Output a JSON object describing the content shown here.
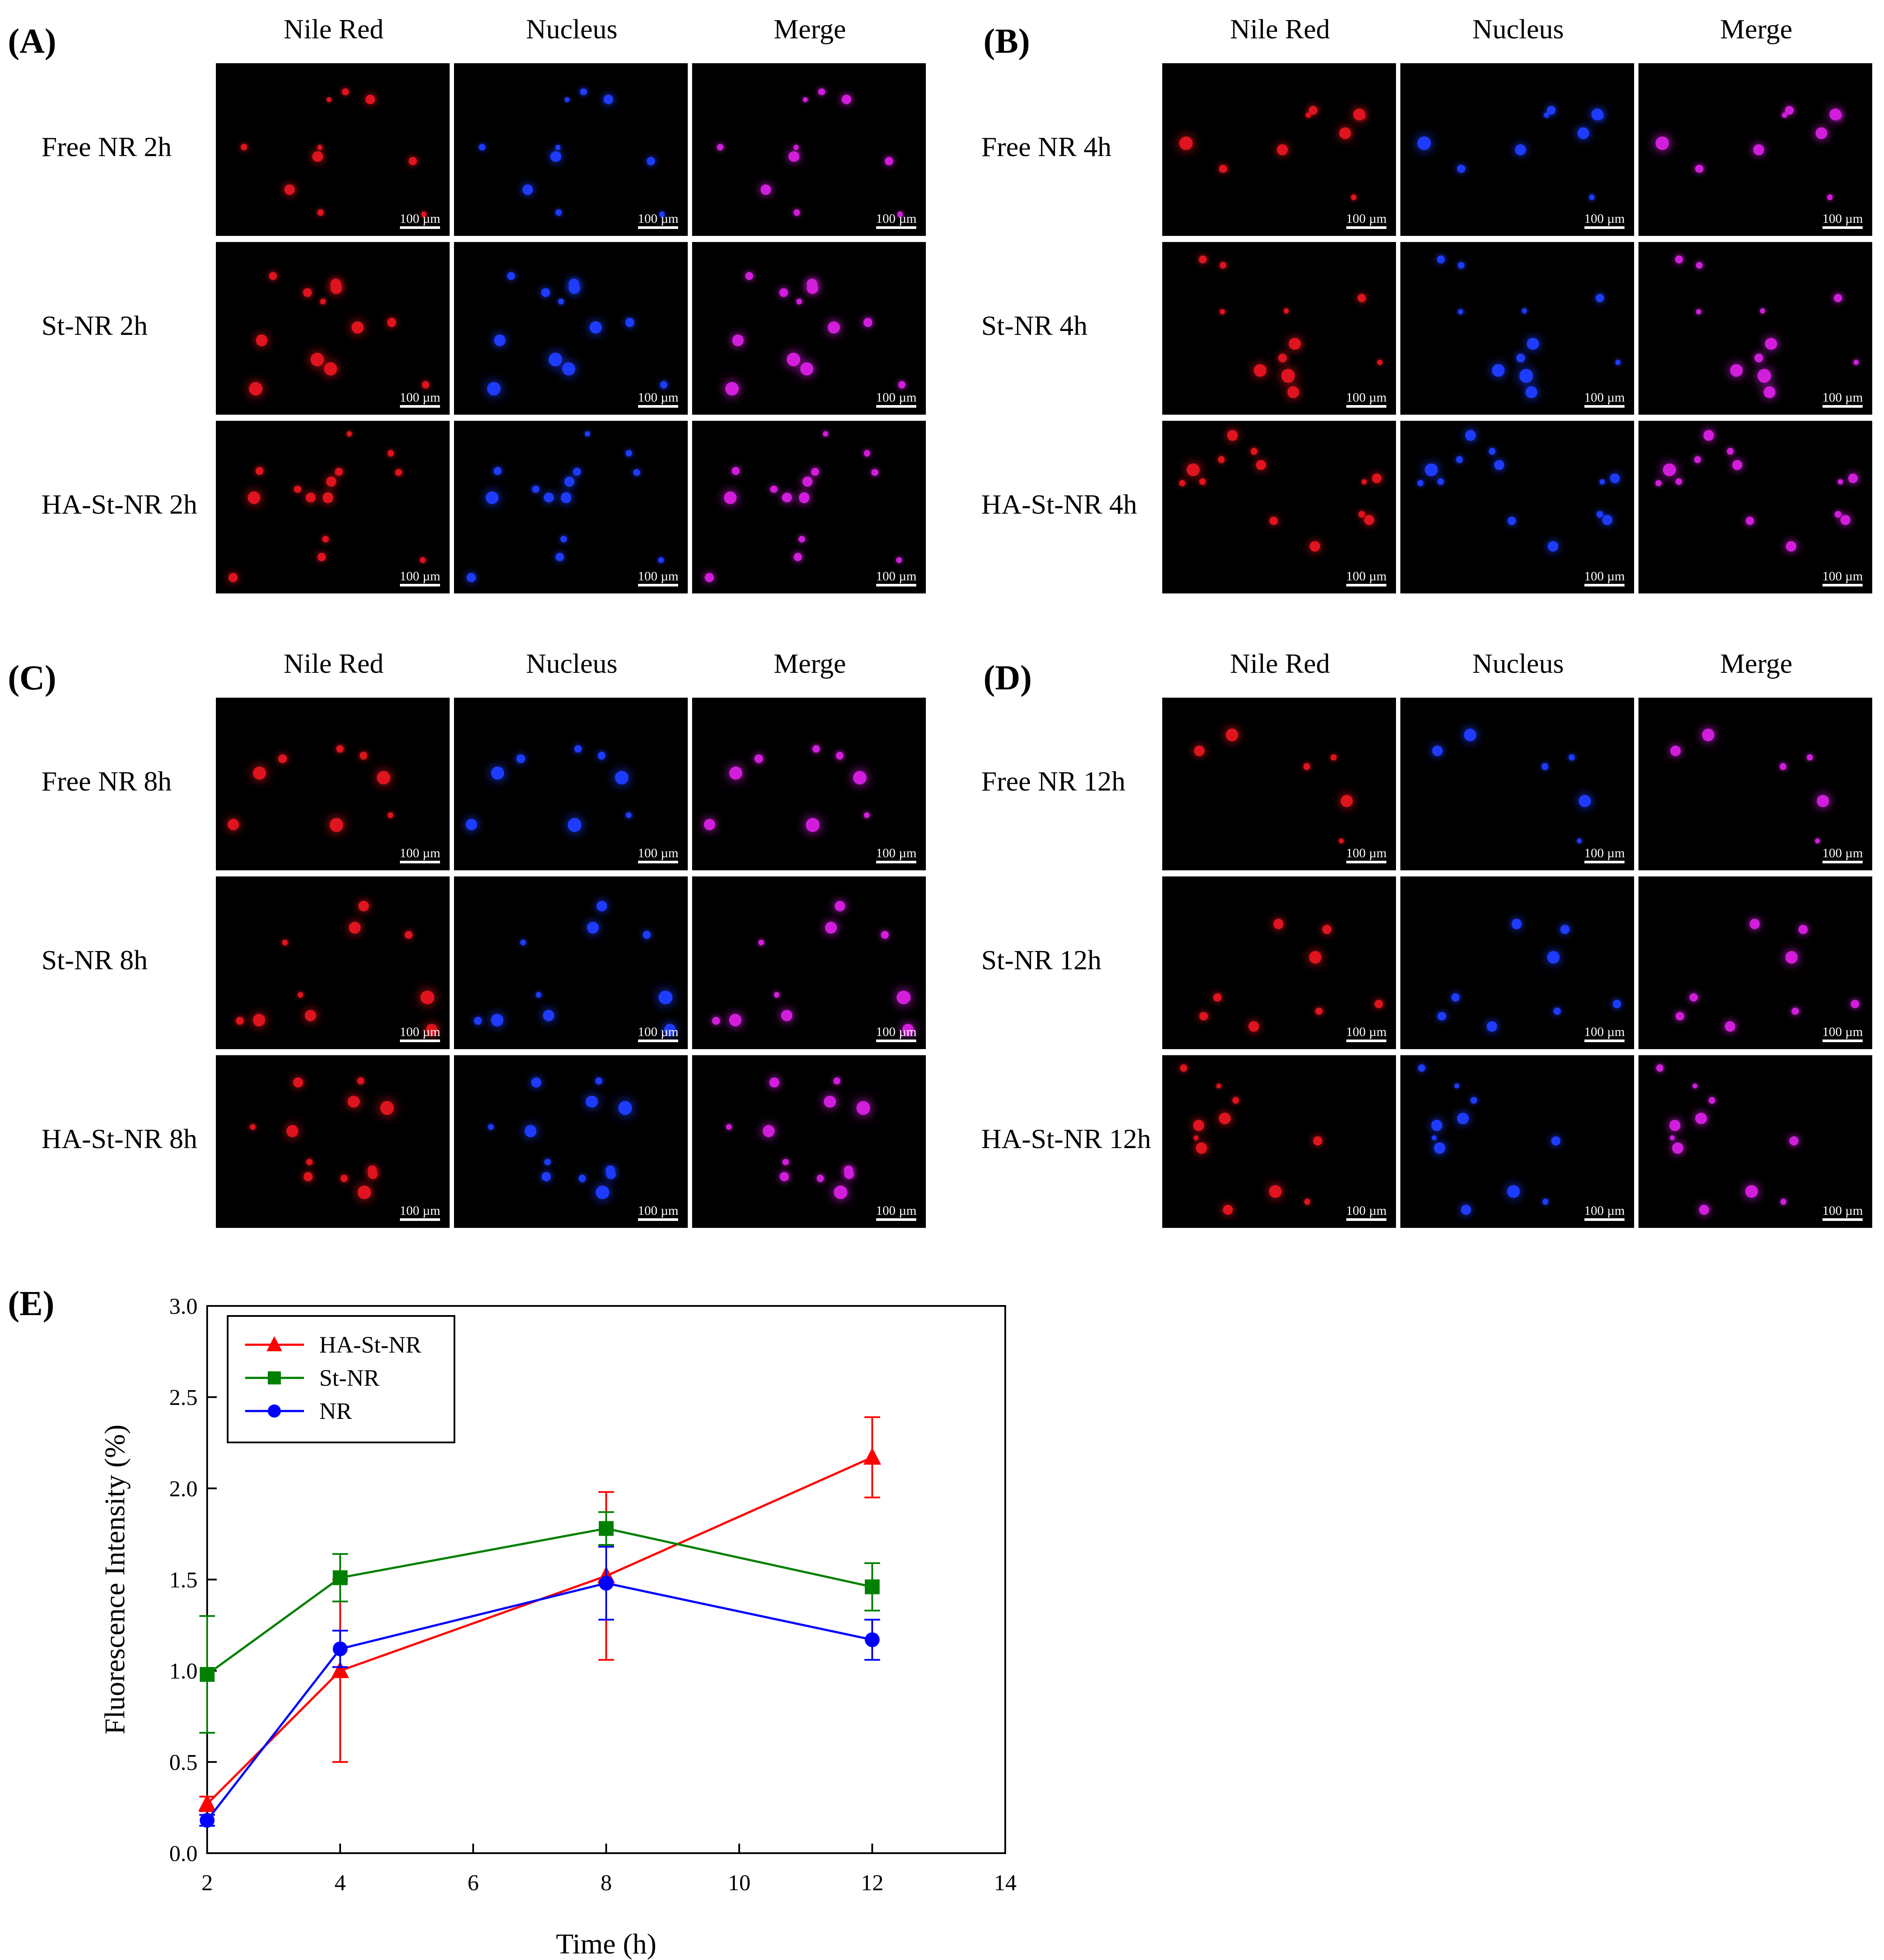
{
  "panels": [
    {
      "letter": "(A)",
      "columns": [
        "Nile Red",
        "Nucleus",
        "Merge"
      ],
      "rows": [
        "Free NR 2h",
        "St-NR 2h",
        "HA-St-NR 2h"
      ]
    },
    {
      "letter": "(B)",
      "columns": [
        "Nile Red",
        "Nucleus",
        "Merge"
      ],
      "rows": [
        "Free NR 4h",
        "St-NR 4h",
        "HA-St-NR 4h"
      ]
    },
    {
      "letter": "(C)",
      "columns": [
        "Nile Red",
        "Nucleus",
        "Merge"
      ],
      "rows": [
        "Free NR 8h",
        "St-NR 8h",
        "HA-St-NR 8h"
      ]
    },
    {
      "letter": "(D)",
      "columns": [
        "Nile Red",
        "Nucleus",
        "Merge"
      ],
      "rows": [
        "Free NR 12h",
        "St-NR 12h",
        "HA-St-NR 12h"
      ]
    }
  ],
  "scale_bar_label": "100 µm",
  "chart_panel_letter": "(E)",
  "colors": {
    "ha_st_nr": "#ff0000",
    "st_nr": "#008000",
    "nr": "#0000ff",
    "nile_red_stain": "#e0141e",
    "nucleus_stain": "#1e3cff",
    "merge_stain": "#d21edc"
  },
  "chart_data": {
    "type": "line",
    "xlabel": "Time (h)",
    "ylabel": "Fluorescence Intensity (%)",
    "xlim": [
      2,
      14
    ],
    "ylim": [
      0.0,
      3.0
    ],
    "xticks": [
      "2",
      "4",
      "6",
      "8",
      "10",
      "12",
      "14"
    ],
    "yticks": [
      "0.0",
      "0.5",
      "1.0",
      "1.5",
      "2.0",
      "2.5",
      "3.0"
    ],
    "legend_position": "top-left",
    "series": [
      {
        "name": "HA-St-NR",
        "marker": "triangle",
        "color": "#ff0000",
        "x": [
          2,
          4,
          8,
          12
        ],
        "y": [
          0.27,
          1.0,
          1.52,
          2.17
        ],
        "err": [
          0.04,
          0.5,
          0.46,
          0.22
        ]
      },
      {
        "name": "St-NR",
        "marker": "square",
        "color": "#008000",
        "x": [
          2,
          4,
          8,
          12
        ],
        "y": [
          0.98,
          1.51,
          1.78,
          1.46
        ],
        "err": [
          0.32,
          0.13,
          0.09,
          0.13
        ]
      },
      {
        "name": "NR",
        "marker": "circle",
        "color": "#0000ff",
        "x": [
          2,
          4,
          8,
          12
        ],
        "y": [
          0.18,
          1.12,
          1.48,
          1.17
        ],
        "err": [
          0.03,
          0.1,
          0.2,
          0.11
        ]
      }
    ]
  }
}
